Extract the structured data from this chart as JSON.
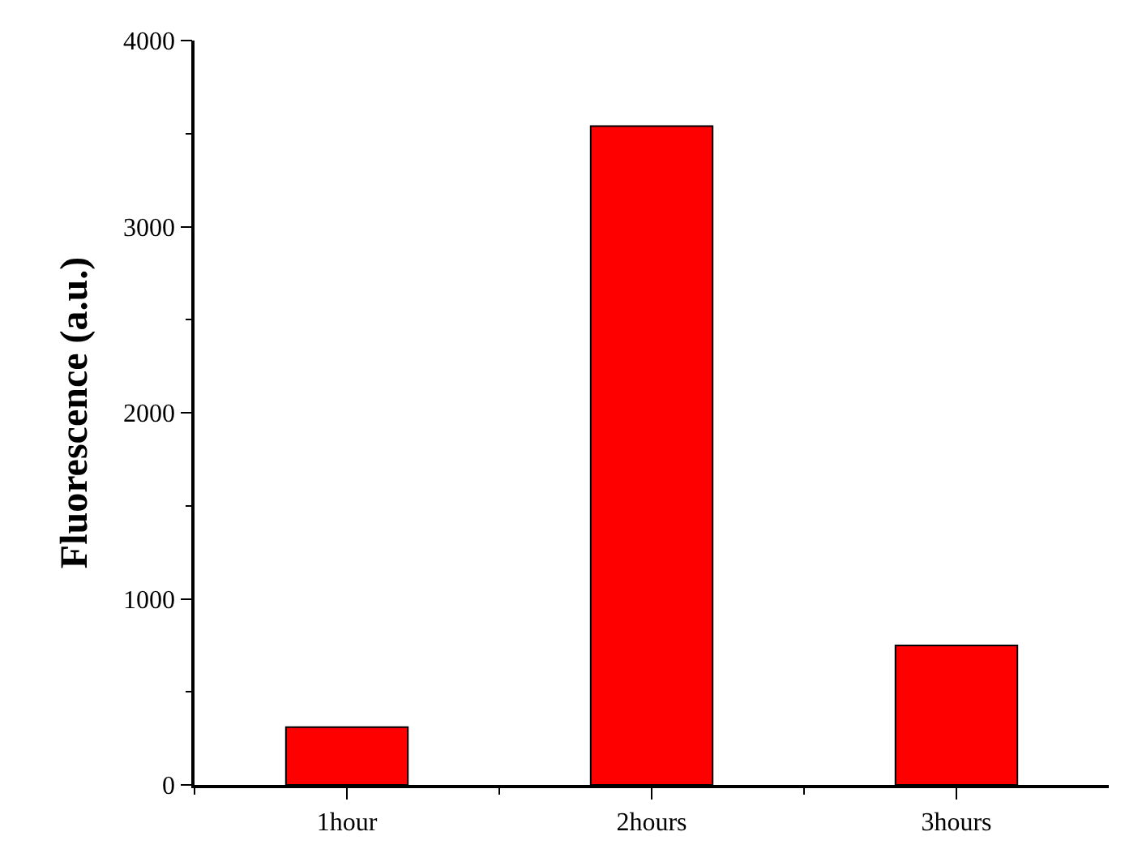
{
  "chart_data": {
    "type": "bar",
    "ylabel": "Fluorescence (a.u.)",
    "categories": [
      "1hour",
      "2hours",
      "3hours"
    ],
    "values": [
      310,
      3540,
      750
    ],
    "color": "#ff0000",
    "ylim": [
      0,
      4000
    ],
    "yticks": [
      0,
      1000,
      2000,
      3000,
      4000
    ]
  }
}
